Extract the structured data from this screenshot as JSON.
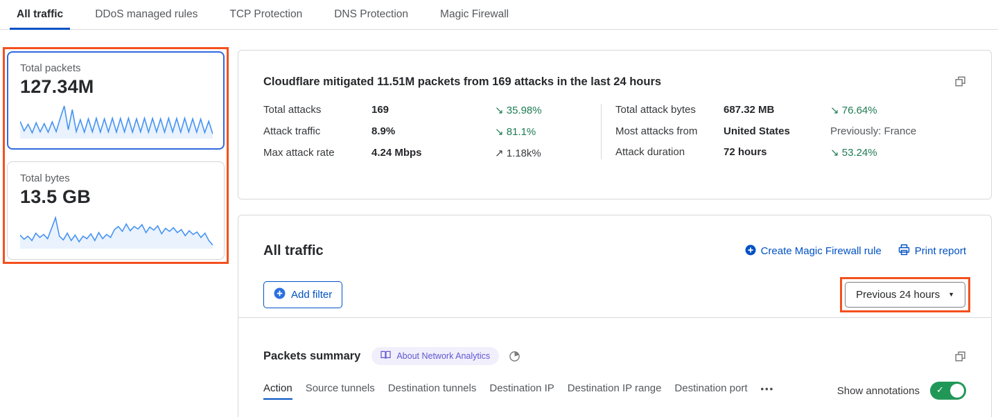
{
  "top_tabs": {
    "items": [
      {
        "id": "all-traffic",
        "label": "All traffic",
        "active": true
      },
      {
        "id": "ddos-managed-rules",
        "label": "DDoS managed rules",
        "active": false
      },
      {
        "id": "tcp-protection",
        "label": "TCP Protection",
        "active": false
      },
      {
        "id": "dns-protection",
        "label": "DNS Protection",
        "active": false
      },
      {
        "id": "magic-firewall",
        "label": "Magic Firewall",
        "active": false
      }
    ]
  },
  "metric_cards": {
    "cards": [
      {
        "id": "total-packets",
        "title": "Total packets",
        "value": "127.34M",
        "selected": true,
        "sparkline": [
          50,
          18,
          40,
          12,
          45,
          15,
          42,
          14,
          48,
          16,
          60,
          100,
          22,
          88,
          16,
          55,
          14,
          58,
          15,
          60,
          14,
          58,
          15,
          60,
          14,
          59,
          15,
          60,
          14,
          58,
          15,
          60,
          14,
          59,
          15,
          58,
          14,
          60,
          15,
          59,
          14,
          60,
          15,
          58,
          14,
          57,
          13,
          50,
          8
        ]
      },
      {
        "id": "total-bytes",
        "title": "Total bytes",
        "value": "13.5 GB",
        "selected": false,
        "sparkline": [
          38,
          24,
          34,
          20,
          44,
          30,
          40,
          26,
          60,
          95,
          34,
          22,
          44,
          20,
          38,
          16,
          34,
          26,
          42,
          20,
          46,
          26,
          40,
          30,
          56,
          66,
          50,
          74,
          52,
          66,
          58,
          72,
          46,
          64,
          54,
          68,
          42,
          60,
          50,
          62,
          46,
          56,
          36,
          52,
          40,
          48,
          30,
          44,
          20,
          5
        ]
      }
    ]
  },
  "summary_panel": {
    "title": "Cloudflare mitigated 11.51M packets from 169 attacks in the last 24 hours",
    "columns": [
      {
        "rows": [
          {
            "label": "Total attacks",
            "value": "169",
            "arrow": "↘",
            "trend": "35.98%",
            "trend_style": "green"
          },
          {
            "label": "Attack traffic",
            "value": "8.9%",
            "arrow": "↘",
            "trend": "81.1%",
            "trend_style": "green"
          },
          {
            "label": "Max attack rate",
            "value": "4.24 Mbps",
            "arrow": "↗",
            "trend": "1.18k%",
            "trend_style": "dark"
          }
        ]
      },
      {
        "rows": [
          {
            "label": "Total attack bytes",
            "value": "687.32 MB",
            "arrow": "↘",
            "trend": "76.64%",
            "trend_style": "green"
          },
          {
            "label": "Most attacks from",
            "value": "United States",
            "arrow": "",
            "trend": "Previously: France",
            "trend_style": "gray"
          },
          {
            "label": "Attack duration",
            "value": "72 hours",
            "arrow": "↘",
            "trend": "53.24%",
            "trend_style": "green"
          }
        ]
      }
    ]
  },
  "traffic_panel": {
    "title": "All traffic",
    "create_rule_label": "Create Magic Firewall rule",
    "print_label": "Print report",
    "add_filter_label": "Add filter",
    "time_range_value": "Previous 24 hours"
  },
  "packets_summary": {
    "title": "Packets summary",
    "badge_label": "About Network Analytics",
    "tabs": [
      {
        "id": "action",
        "label": "Action",
        "active": true
      },
      {
        "id": "source-tunnels",
        "label": "Source tunnels",
        "active": false
      },
      {
        "id": "destination-tunnels",
        "label": "Destination tunnels",
        "active": false
      },
      {
        "id": "destination-ip",
        "label": "Destination IP",
        "active": false
      },
      {
        "id": "destination-ip-range",
        "label": "Destination IP range",
        "active": false
      },
      {
        "id": "destination-port",
        "label": "Destination port",
        "active": false
      }
    ],
    "show_annotations_label": "Show annotations",
    "annotations_on": true
  },
  "icons": {
    "more_tabs": "•••",
    "caret_down": "▼",
    "toggle_check": "✓"
  },
  "colors": {
    "accent_blue": "#0051c3",
    "selected_card_blue": "#3069de",
    "sparkline_blue": "#4693f2",
    "trend_green": "#1e7b52",
    "toggle_green": "#219757",
    "highlight_orange": "#f4501e",
    "badge_purple": "#6156d2",
    "badge_bg": "#f1effb"
  }
}
